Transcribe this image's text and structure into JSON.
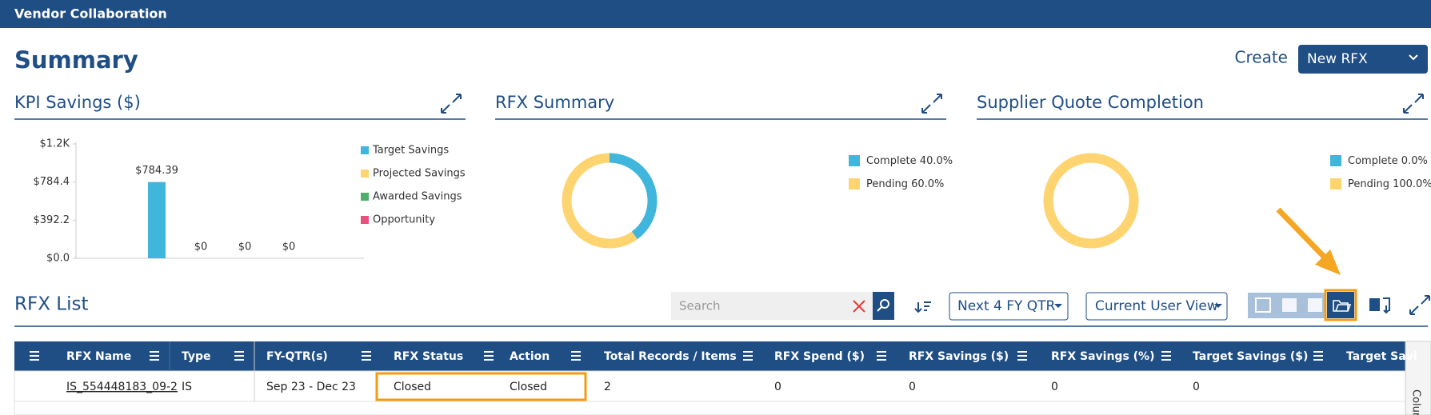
{
  "header": {
    "title": "Vendor Collaboration"
  },
  "page_title": "Summary",
  "create": {
    "label": "Create",
    "dropdown": "New RFX"
  },
  "chart_data": [
    {
      "type": "bar",
      "title": "KPI Savings ($)",
      "series": [
        {
          "name": "Target Savings",
          "color": "#41b6dc",
          "values": [
            784.39
          ],
          "value_labels": [
            "$784.39"
          ]
        },
        {
          "name": "Projected Savings",
          "color": "#fdd46f",
          "values": [
            0
          ],
          "value_labels": [
            "$0"
          ]
        },
        {
          "name": "Awarded Savings",
          "color": "#4caf6a",
          "values": [
            0
          ],
          "value_labels": [
            "$0"
          ]
        },
        {
          "name": "Opportunity",
          "color": "#e8517e",
          "values": [
            0
          ],
          "value_labels": [
            "$0"
          ]
        }
      ],
      "ylim": [
        0,
        1176.6
      ],
      "yticks": [
        {
          "value": 0,
          "label": "$0.0"
        },
        {
          "value": 392.2,
          "label": "$392.2"
        },
        {
          "value": 784.4,
          "label": "$784.4"
        },
        {
          "value": 1176.6,
          "label": "$1.2K"
        }
      ]
    },
    {
      "type": "pie",
      "title": "RFX Summary",
      "categories": [
        "Complete",
        "Pending"
      ],
      "values": [
        40,
        60
      ],
      "value_labels": [
        "40.0%",
        "60.0%"
      ],
      "colors": [
        "#41b6dc",
        "#fdd46f"
      ]
    },
    {
      "type": "pie",
      "title": "Supplier Quote Completion",
      "categories": [
        "Complete",
        "Pending"
      ],
      "values": [
        0,
        100
      ],
      "value_labels": [
        "0.0%",
        "100.0%"
      ],
      "colors": [
        "#41b6dc",
        "#fdd46f"
      ]
    }
  ],
  "rfx_list": {
    "title": "RFX List",
    "search_placeholder": "Search",
    "period_filter": "Next 4 FY QTR",
    "view_filter": "Current User View",
    "side_tab": "Columns",
    "columns": [
      "RFX Name",
      "Type",
      "FY-QTR(s)",
      "RFX Status",
      "Action",
      "Total Records / Items",
      "RFX Spend ($)",
      "RFX Savings ($)",
      "RFX Savings (%)",
      "Target Savings ($)",
      "Target Savi"
    ],
    "rows": [
      [
        "IS_554448183_09-2",
        "IS",
        "Sep 23 - Dec 23",
        "Closed",
        "Closed",
        "2",
        "0",
        "0",
        "0",
        "0"
      ]
    ]
  }
}
